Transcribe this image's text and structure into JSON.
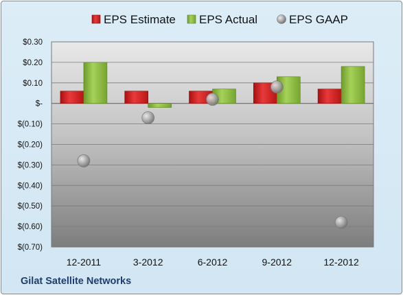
{
  "chart_data": {
    "type": "bar",
    "categories": [
      "12-2011",
      "3-2012",
      "6-2012",
      "9-2012",
      "12-2012"
    ],
    "series": [
      {
        "name": "EPS Estimate",
        "kind": "bar",
        "color": "#d42020",
        "values": [
          0.06,
          0.06,
          0.06,
          0.1,
          0.07
        ]
      },
      {
        "name": "EPS Actual",
        "kind": "bar",
        "color": "#8cbe3c",
        "values": [
          0.2,
          -0.02,
          0.07,
          0.13,
          0.18
        ]
      },
      {
        "name": "EPS GAAP",
        "kind": "scatter",
        "color": "#9a9a9a",
        "values": [
          -0.28,
          -0.07,
          0.02,
          0.08,
          -0.58
        ]
      }
    ],
    "y_ticks": [
      "$0.30",
      "$0.20",
      "$0.10",
      "$-",
      "$(0.10)",
      "$(0.20)",
      "$(0.30)",
      "$(0.40)",
      "$(0.50)",
      "$(0.60)",
      "$(0.70)"
    ],
    "ylim": [
      -0.7,
      0.3
    ],
    "grid": true,
    "legend_position": "top"
  },
  "footer": {
    "company": "Gilat Satellite Networks"
  }
}
